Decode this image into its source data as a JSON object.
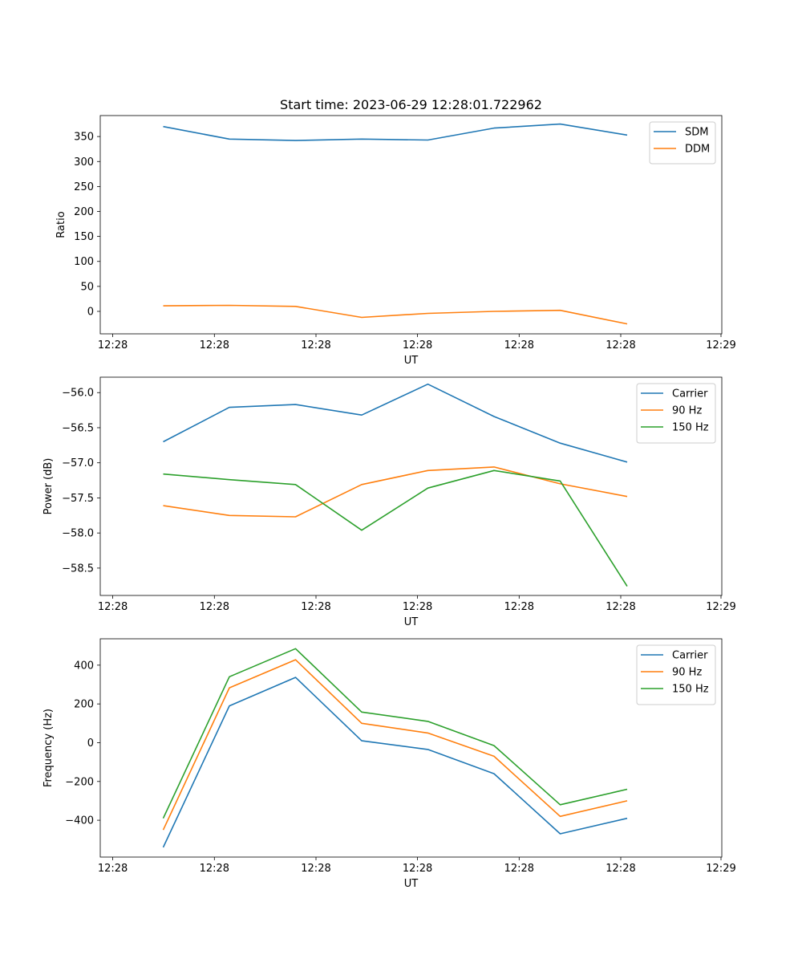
{
  "figure": {
    "title": "Start time: 2023-06-29 12:28:01.722962"
  },
  "chart_data": [
    {
      "type": "line",
      "title": "Start time: 2023-06-29 12:28:01.722962",
      "xlabel": "UT",
      "ylabel": "Ratio",
      "x_tick_labels": [
        "12:28",
        "12:28",
        "12:28",
        "12:28",
        "12:28",
        "12:28",
        "12:29"
      ],
      "y_ticks": [
        0,
        50,
        100,
        150,
        200,
        250,
        300,
        350
      ],
      "ylim": [
        -45,
        392
      ],
      "legend_position": "top-right",
      "series": [
        {
          "name": "SDM",
          "color": "#1f77b4",
          "values": [
            370,
            345,
            342,
            345,
            343,
            367,
            375,
            353
          ]
        },
        {
          "name": "DDM",
          "color": "#ff7f0e",
          "values": [
            11,
            12,
            10,
            -12,
            -4,
            0,
            2,
            -25
          ]
        }
      ]
    },
    {
      "type": "line",
      "xlabel": "UT",
      "ylabel": "Power (dB)",
      "x_tick_labels": [
        "12:28",
        "12:28",
        "12:28",
        "12:28",
        "12:28",
        "12:28",
        "12:29"
      ],
      "y_ticks": [
        -58.5,
        -58.0,
        -57.5,
        -57.0,
        -56.5,
        -56.0
      ],
      "y_tick_labels": [
        "−58.5",
        "−58.0",
        "−57.5",
        "−57.0",
        "−56.5",
        "−56.0"
      ],
      "ylim": [
        -58.89,
        -55.78
      ],
      "legend_position": "top-right",
      "series": [
        {
          "name": "Carrier",
          "color": "#1f77b4",
          "values": [
            -56.7,
            -56.21,
            -56.17,
            -56.32,
            -55.88,
            -56.34,
            -56.72,
            -56.99
          ]
        },
        {
          "name": "90 Hz",
          "color": "#ff7f0e",
          "values": [
            -57.61,
            -57.75,
            -57.77,
            -57.31,
            -57.11,
            -57.06,
            -57.3,
            -57.48
          ]
        },
        {
          "name": "150 Hz",
          "color": "#2ca02c",
          "values": [
            -57.16,
            -57.24,
            -57.31,
            -57.96,
            -57.36,
            -57.11,
            -57.26,
            -58.76
          ]
        }
      ]
    },
    {
      "type": "line",
      "xlabel": "UT",
      "ylabel": "Frequency (Hz)",
      "x_tick_labels": [
        "12:28",
        "12:28",
        "12:28",
        "12:28",
        "12:28",
        "12:28",
        "12:29"
      ],
      "y_ticks": [
        -400,
        -200,
        0,
        200,
        400
      ],
      "y_tick_labels": [
        "−400",
        "−200",
        "0",
        "200",
        "400"
      ],
      "ylim": [
        -590,
        536
      ],
      "legend_position": "top-right",
      "series": [
        {
          "name": "Carrier",
          "color": "#1f77b4",
          "values": [
            -540,
            190,
            337,
            10,
            -35,
            -160,
            -470,
            -390
          ]
        },
        {
          "name": "90 Hz",
          "color": "#ff7f0e",
          "values": [
            -450,
            283,
            428,
            100,
            50,
            -70,
            -380,
            -300
          ]
        },
        {
          "name": "150 Hz",
          "color": "#2ca02c",
          "values": [
            -390,
            340,
            485,
            158,
            110,
            -15,
            -320,
            -240
          ]
        }
      ]
    }
  ]
}
